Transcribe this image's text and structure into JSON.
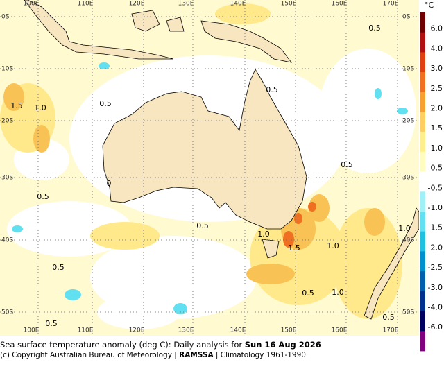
{
  "map": {
    "longitude_labels": [
      "100E",
      "110E",
      "120E",
      "130E",
      "140E",
      "150E",
      "160E",
      "170E"
    ],
    "latitude_labels": [
      "0S",
      "10S",
      "20S",
      "30S",
      "40S",
      "50S"
    ],
    "contour_labels": [
      "1.5",
      "1.0",
      "0.5",
      "0.5",
      "0.5",
      "0.5",
      "0",
      "0.5",
      "0.5",
      "1.0",
      "1.5",
      "1.0",
      "1.0",
      "0.5",
      "0.5",
      "1.0",
      "0.5",
      "0.5"
    ]
  },
  "legend": {
    "unit": "°C",
    "ticks": [
      "6.0",
      "4.0",
      "3.0",
      "2.5",
      "2.0",
      "1.5",
      "1.0",
      "0.5",
      "-0.5",
      "-1.0",
      "-1.5",
      "-2.0",
      "-2.5",
      "-3.0",
      "-4.0",
      "-6.0"
    ]
  },
  "caption": {
    "title_prefix": "Sea surface temperature anomaly (deg C): Daily analysis for ",
    "date": "Sun 16 Aug 2026",
    "copyright": "(c) Copyright Australian Bureau of Meteorology | ",
    "system": "RAMSSA",
    "climatology": " | Climatology 1961-1990"
  }
}
